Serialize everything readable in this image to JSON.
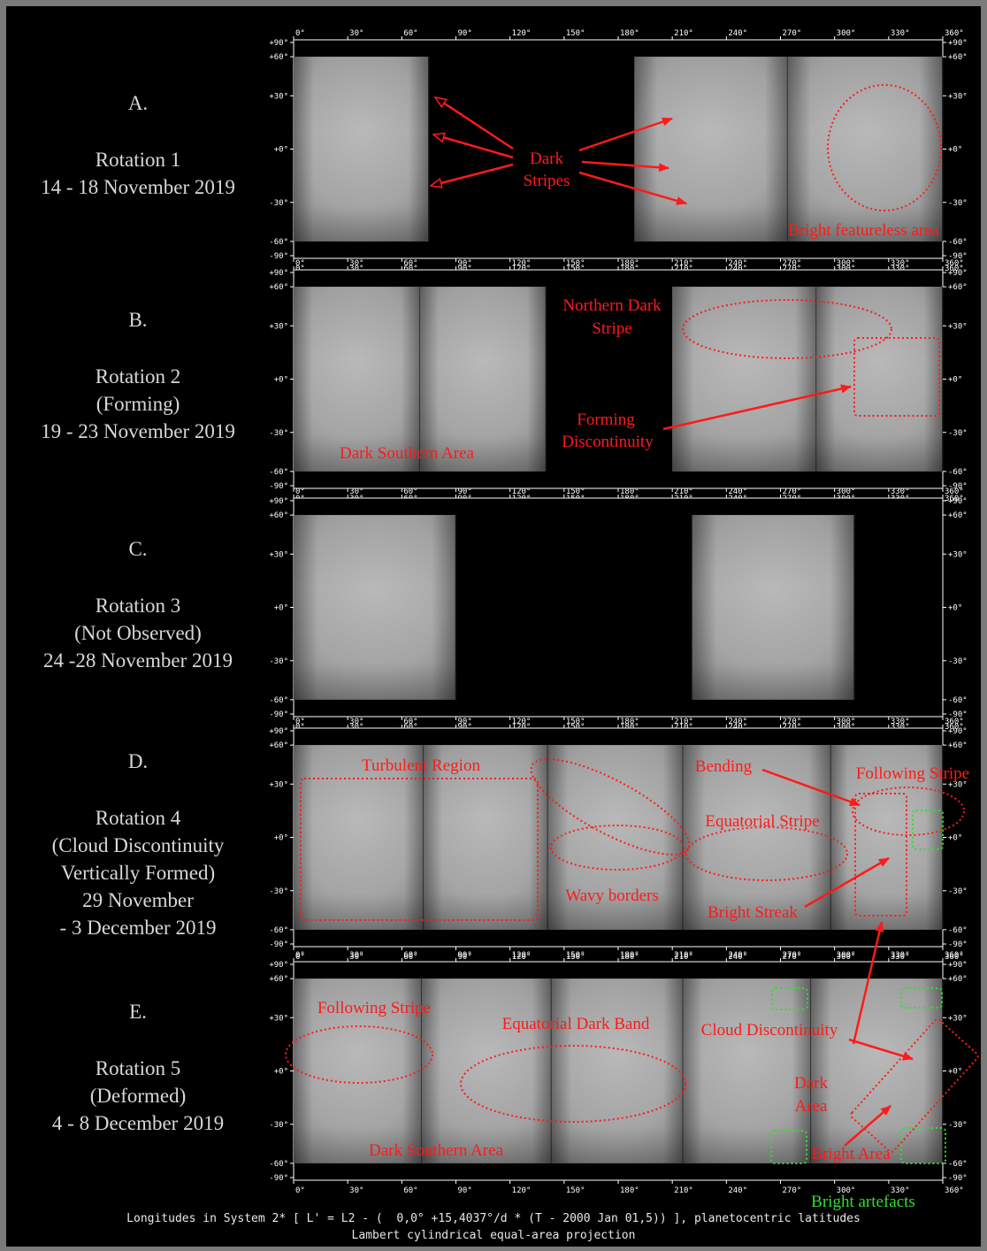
{
  "rows": [
    {
      "letter": "A.",
      "lines": [
        "Rotation 1",
        "14 - 18 November 2019"
      ]
    },
    {
      "letter": "B.",
      "lines": [
        "Rotation 2",
        "(Forming)",
        "19 - 23 November 2019"
      ]
    },
    {
      "letter": "C.",
      "lines": [
        "Rotation 3",
        "(Not Observed)",
        "24 -28 November 2019"
      ]
    },
    {
      "letter": "D.",
      "lines": [
        "Rotation 4",
        "(Cloud Discontinuity",
        "Vertically Formed)",
        "29 November",
        "- 3 December 2019"
      ]
    },
    {
      "letter": "E.",
      "lines": [
        "Rotation 5",
        "(Deformed)",
        "4 - 8 December 2019"
      ]
    }
  ],
  "axes": {
    "lon_ticks": [
      "0°",
      "30°",
      "60°",
      "90°",
      "120°",
      "150°",
      "180°",
      "210°",
      "240°",
      "270°",
      "300°",
      "330°",
      "360°"
    ],
    "lat_ticks": [
      "+90°",
      "+60°",
      "+30°",
      "+0°",
      "-30°",
      "-60°",
      "-90°"
    ]
  },
  "panel_strips": [
    [
      [
        0,
        75
      ],
      [
        189,
        274
      ],
      [
        274,
        360
      ]
    ],
    [
      [
        0,
        70
      ],
      [
        70,
        140
      ],
      [
        210,
        290
      ],
      [
        290,
        360
      ]
    ],
    [
      [
        0,
        90
      ],
      [
        221,
        311
      ]
    ],
    [
      [
        0,
        72
      ],
      [
        72,
        141
      ],
      [
        141,
        216
      ],
      [
        216,
        298
      ],
      [
        298,
        360
      ]
    ],
    [
      [
        0,
        71
      ],
      [
        71,
        143
      ],
      [
        143,
        216
      ],
      [
        216,
        287
      ],
      [
        287,
        360
      ]
    ]
  ],
  "annotations": {
    "a_dark_stripes": [
      "Dark",
      "Stripes"
    ],
    "a_bright_featureless": "Bright featureless area",
    "b_northern_dark": [
      "Northern Dark",
      "Stripe"
    ],
    "b_forming": [
      "Forming",
      "Discontinuity"
    ],
    "b_dark_southern": "Dark Southern Area",
    "d_turbulent": "Turbulent Region",
    "d_bending": "Bending",
    "d_following": "Following Stripe",
    "d_equatorial": "Equatorial Stripe",
    "d_wavy": "Wavy borders",
    "d_bright_streak": "Bright Streak",
    "e_following": "Following Stripe",
    "e_equatorial_band": "Equatorial Dark Band",
    "e_cloud_disc": "Cloud Discontinuity",
    "e_dark_area": [
      "Dark",
      "Area"
    ],
    "e_bright_area": "Bright Area",
    "e_dark_southern": "Dark Southern Area",
    "bright_artefacts": "Bright artefacts"
  },
  "footer": {
    "line1": "Longitudes in System 2* [ L' = L2 - (  0,0° +15,4037°/d * (T - 2000 Jan 01,5)) ], planetocentric latitudes",
    "line2": "Lambert cylindrical equal-area projection"
  },
  "colors": {
    "annotation": "#ff1a1a",
    "artefact": "#33dd33",
    "axis": "#ffffff",
    "label": "#d8d8d8"
  }
}
